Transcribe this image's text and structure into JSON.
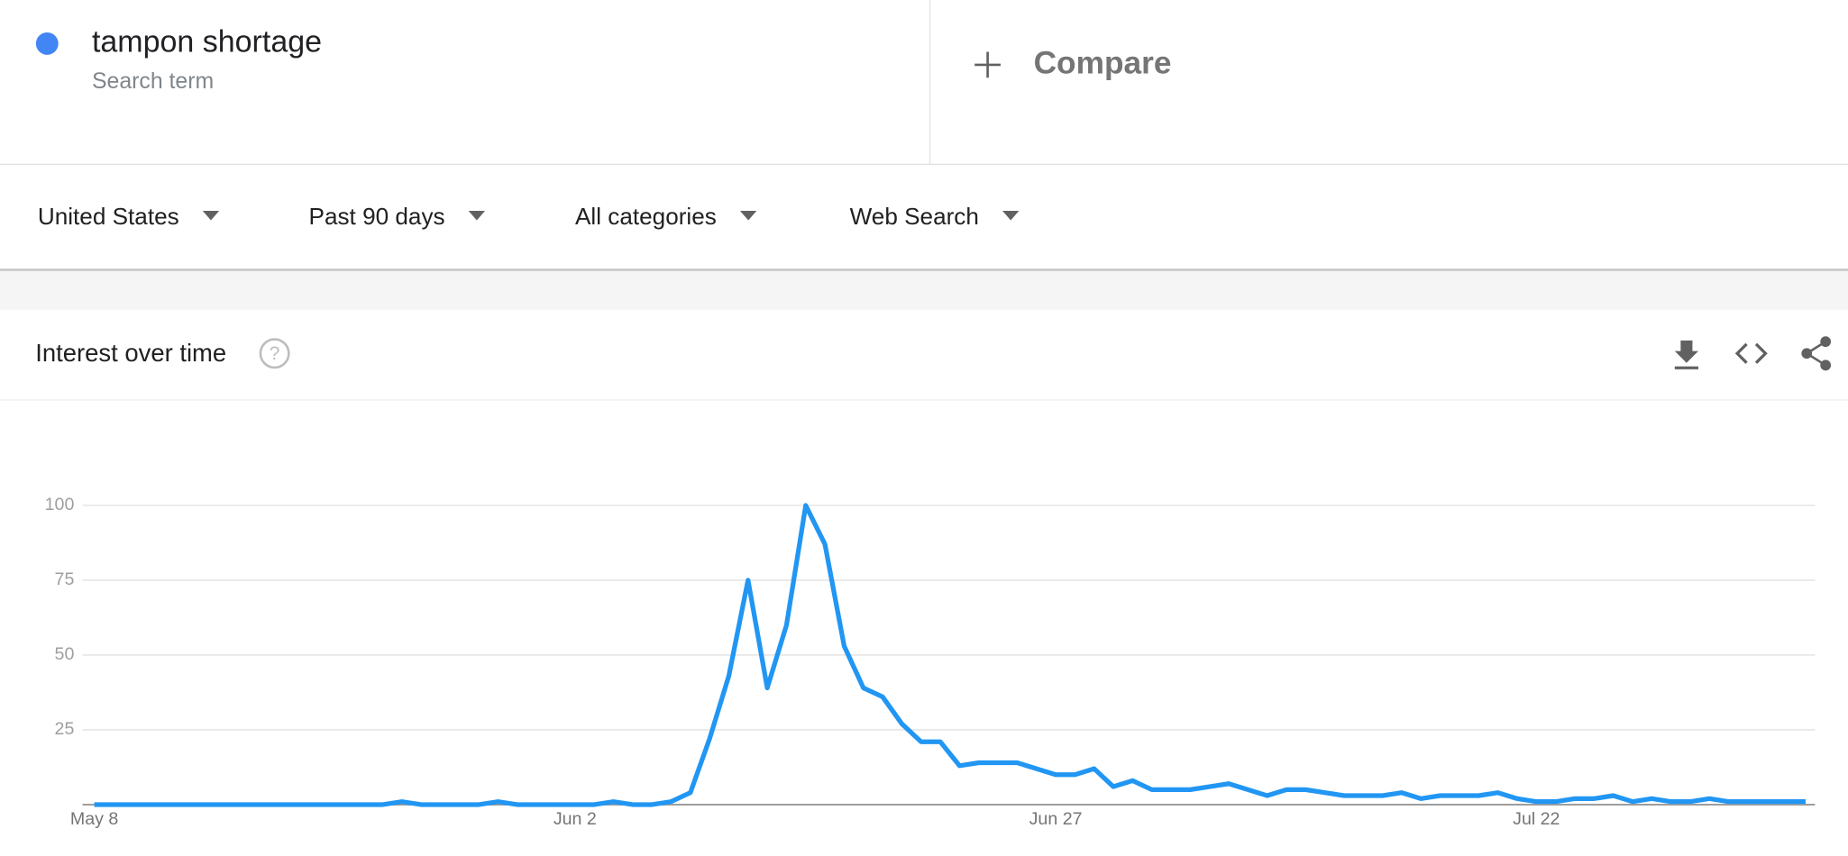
{
  "header": {
    "term": "tampon shortage",
    "term_label": "Search term",
    "compare": "Compare"
  },
  "filters": [
    "United States",
    "Past 90 days",
    "All categories",
    "Web Search"
  ],
  "card": {
    "title": "Interest over time"
  },
  "chart_data": {
    "type": "line",
    "categories": [
      "May 8",
      null,
      null,
      null,
      null,
      null,
      null,
      null,
      null,
      null,
      null,
      null,
      null,
      null,
      null,
      null,
      null,
      null,
      null,
      null,
      null,
      null,
      null,
      null,
      null,
      "Jun 2",
      null,
      null,
      null,
      null,
      null,
      null,
      null,
      null,
      null,
      null,
      null,
      null,
      null,
      null,
      null,
      null,
      null,
      null,
      null,
      null,
      null,
      null,
      null,
      null,
      "Jun 27",
      null,
      null,
      null,
      null,
      null,
      null,
      null,
      null,
      null,
      null,
      null,
      null,
      null,
      null,
      null,
      null,
      null,
      null,
      null,
      null,
      null,
      null,
      null,
      null,
      "Jul 22",
      null,
      null,
      null,
      null,
      null,
      null,
      null,
      null,
      null,
      null,
      null,
      null,
      null,
      null
    ],
    "series": [
      {
        "name": "tampon shortage",
        "color": "#2196f3",
        "values": [
          0,
          0,
          0,
          0,
          0,
          0,
          0,
          0,
          0,
          0,
          0,
          0,
          0,
          0,
          0,
          0,
          1,
          0,
          0,
          0,
          0,
          1,
          0,
          0,
          0,
          0,
          0,
          1,
          0,
          0,
          1,
          4,
          22,
          43,
          75,
          39,
          60,
          100,
          87,
          53,
          39,
          36,
          27,
          21,
          21,
          13,
          14,
          14,
          14,
          12,
          10,
          10,
          12,
          6,
          8,
          5,
          5,
          5,
          6,
          7,
          5,
          3,
          5,
          5,
          4,
          3,
          3,
          3,
          4,
          2,
          3,
          3,
          3,
          4,
          2,
          1,
          1,
          2,
          2,
          3,
          1,
          2,
          1,
          1,
          2,
          1,
          1,
          1,
          1,
          1
        ]
      }
    ],
    "ylim": [
      0,
      100
    ],
    "yticks": [
      25,
      50,
      75,
      100
    ],
    "grid": true
  }
}
